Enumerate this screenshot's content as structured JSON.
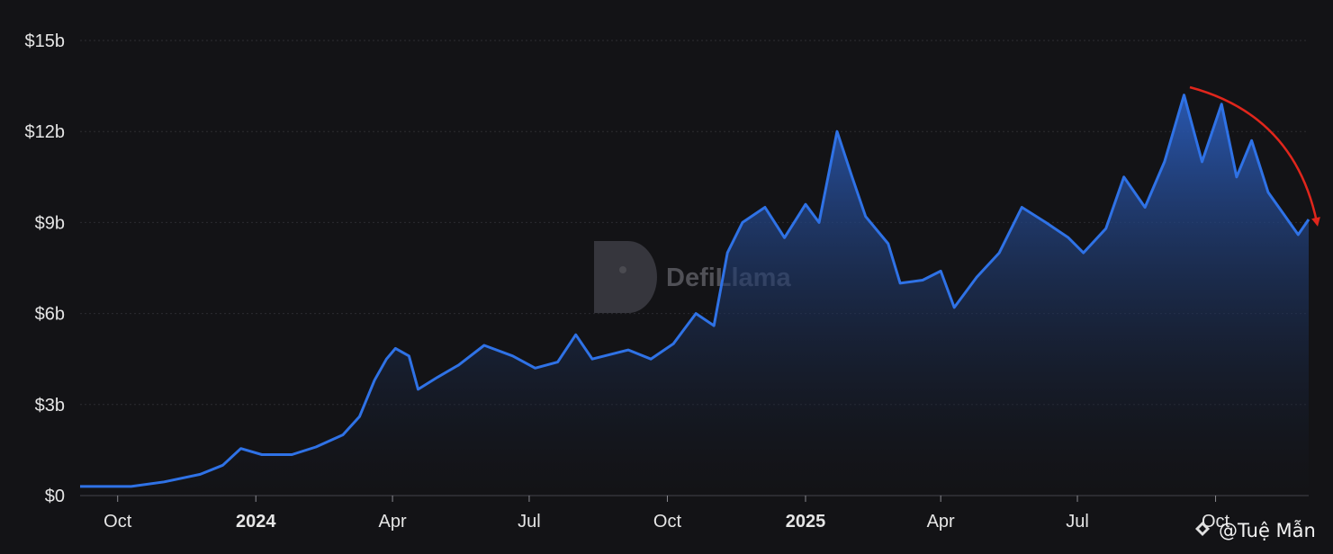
{
  "watermark": {
    "brand": "DefiLlama"
  },
  "credit": {
    "handle": "@Tuệ Mẫn"
  },
  "colors": {
    "background": "#131316",
    "line": "#2f72e6",
    "area_top": "#2a5bb8",
    "annotation_arrow": "#e0261c"
  },
  "chart_data": {
    "type": "area",
    "title": "",
    "xlabel": "",
    "ylabel": "",
    "y_unit": "billion USD",
    "ylim": [
      0,
      15
    ],
    "yticks": [
      {
        "value": 0,
        "label": "$0"
      },
      {
        "value": 3,
        "label": "$3b"
      },
      {
        "value": 6,
        "label": "$6b"
      },
      {
        "value": 9,
        "label": "$9b"
      },
      {
        "value": 12,
        "label": "$12b"
      },
      {
        "value": 15,
        "label": "$15b"
      }
    ],
    "xlim": [
      "2023-09-06",
      "2025-12-02"
    ],
    "xticks": [
      {
        "date": "2023-10-01",
        "label": "Oct",
        "bold": false
      },
      {
        "date": "2024-01-01",
        "label": "2024",
        "bold": true
      },
      {
        "date": "2024-04-01",
        "label": "Apr",
        "bold": false
      },
      {
        "date": "2024-07-01",
        "label": "Jul",
        "bold": false
      },
      {
        "date": "2024-10-01",
        "label": "Oct",
        "bold": false
      },
      {
        "date": "2025-01-01",
        "label": "2025",
        "bold": true
      },
      {
        "date": "2025-04-01",
        "label": "Apr",
        "bold": false
      },
      {
        "date": "2025-07-01",
        "label": "Jul",
        "bold": false
      },
      {
        "date": "2025-10-01",
        "label": "Oct",
        "bold": false
      }
    ],
    "grid": true,
    "legend": "none",
    "series": [
      {
        "points": [
          [
            "2023-09-06",
            0.3
          ],
          [
            "2023-10-10",
            0.3
          ],
          [
            "2023-11-01",
            0.45
          ],
          [
            "2023-11-25",
            0.7
          ],
          [
            "2023-12-10",
            1.0
          ],
          [
            "2023-12-22",
            1.55
          ],
          [
            "2024-01-05",
            1.35
          ],
          [
            "2024-01-25",
            1.35
          ],
          [
            "2024-02-10",
            1.6
          ],
          [
            "2024-02-28",
            2.0
          ],
          [
            "2024-03-10",
            2.6
          ],
          [
            "2024-03-20",
            3.8
          ],
          [
            "2024-03-28",
            4.5
          ],
          [
            "2024-04-03",
            4.85
          ],
          [
            "2024-04-12",
            4.6
          ],
          [
            "2024-04-18",
            3.5
          ],
          [
            "2024-05-01",
            3.9
          ],
          [
            "2024-05-15",
            4.3
          ],
          [
            "2024-06-01",
            4.95
          ],
          [
            "2024-06-20",
            4.6
          ],
          [
            "2024-07-05",
            4.2
          ],
          [
            "2024-07-20",
            4.4
          ],
          [
            "2024-08-01",
            5.3
          ],
          [
            "2024-08-12",
            4.5
          ],
          [
            "2024-09-05",
            4.8
          ],
          [
            "2024-09-20",
            4.5
          ],
          [
            "2024-10-05",
            5.0
          ],
          [
            "2024-10-20",
            6.0
          ],
          [
            "2024-11-01",
            5.6
          ],
          [
            "2024-11-10",
            8.0
          ],
          [
            "2024-11-20",
            9.0
          ],
          [
            "2024-12-05",
            9.5
          ],
          [
            "2024-12-18",
            8.5
          ],
          [
            "2025-01-01",
            9.6
          ],
          [
            "2025-01-10",
            9.0
          ],
          [
            "2025-01-22",
            12.0
          ],
          [
            "2025-02-01",
            10.5
          ],
          [
            "2025-02-10",
            9.2
          ],
          [
            "2025-02-25",
            8.3
          ],
          [
            "2025-03-05",
            7.0
          ],
          [
            "2025-03-20",
            7.1
          ],
          [
            "2025-04-01",
            7.4
          ],
          [
            "2025-04-10",
            6.2
          ],
          [
            "2025-04-25",
            7.2
          ],
          [
            "2025-05-10",
            8.0
          ],
          [
            "2025-05-25",
            9.5
          ],
          [
            "2025-06-10",
            9.0
          ],
          [
            "2025-06-25",
            8.5
          ],
          [
            "2025-07-05",
            8.0
          ],
          [
            "2025-07-20",
            8.8
          ],
          [
            "2025-08-01",
            10.5
          ],
          [
            "2025-08-15",
            9.5
          ],
          [
            "2025-08-28",
            11.0
          ],
          [
            "2025-09-10",
            13.2
          ],
          [
            "2025-09-22",
            11.0
          ],
          [
            "2025-10-05",
            12.9
          ],
          [
            "2025-10-15",
            10.5
          ],
          [
            "2025-10-25",
            11.7
          ],
          [
            "2025-11-05",
            10.0
          ],
          [
            "2025-11-15",
            9.3
          ],
          [
            "2025-11-25",
            8.6
          ],
          [
            "2025-12-02",
            9.1
          ]
        ]
      }
    ]
  }
}
